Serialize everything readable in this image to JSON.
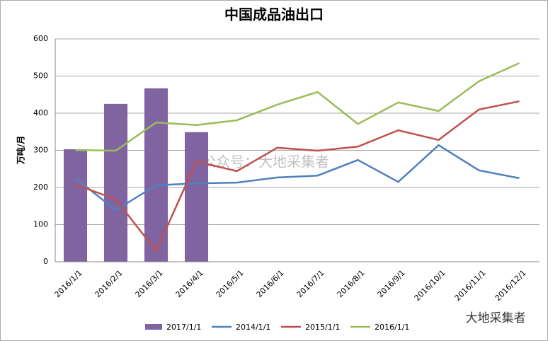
{
  "chart_data": {
    "type": "combo",
    "title": "中国成品油出口",
    "y_label": "万吨/月",
    "categories": [
      "2016/1/1",
      "2016/2/1",
      "2016/3/1",
      "2016/4/1",
      "2016/5/1",
      "2016/6/1",
      "2016/7/1",
      "2016/8/1",
      "2016/9/1",
      "2016/10/1",
      "2016/11/1",
      "2016/12/1"
    ],
    "series": [
      {
        "name": "2017/1/1",
        "type": "bar",
        "color": "#8064a2",
        "values": [
          303,
          425,
          467,
          349,
          null,
          null,
          null,
          null,
          null,
          null,
          null,
          null
        ]
      },
      {
        "name": "2014/1/1",
        "type": "line",
        "color": "#4f81bd",
        "values": [
          225,
          139,
          206,
          211,
          213,
          227,
          232,
          274,
          215,
          314,
          246,
          225
        ]
      },
      {
        "name": "2015/1/1",
        "type": "line",
        "color": "#c0504d",
        "values": [
          208,
          168,
          29,
          270,
          244,
          307,
          299,
          310,
          354,
          328,
          410,
          432
        ]
      },
      {
        "name": "2016/1/1",
        "type": "line",
        "color": "#9bbb59",
        "values": [
          301,
          299,
          375,
          368,
          381,
          423,
          457,
          371,
          429,
          406,
          486,
          535
        ]
      }
    ],
    "ylim": [
      0,
      600
    ],
    "yticks": [
      0,
      100,
      200,
      300,
      400,
      500,
      600
    ],
    "grid": true,
    "legend": "bottom",
    "watermark": "公众号：大地采集者",
    "logo_text": "大地采集者"
  }
}
